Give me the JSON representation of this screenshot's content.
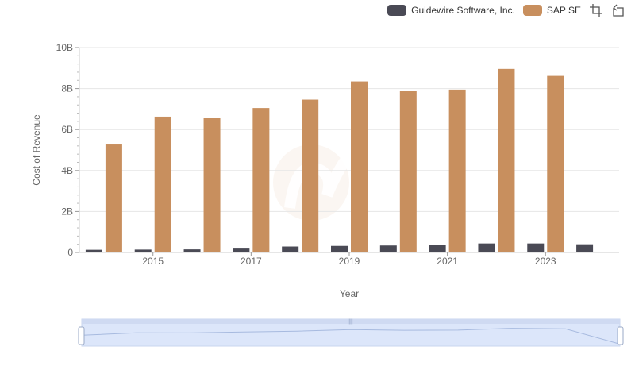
{
  "legend": {
    "items": [
      {
        "label": "Guidewire Software, Inc.",
        "color": "#4a4a55"
      },
      {
        "label": "SAP SE",
        "color": "#c88f5e"
      }
    ]
  },
  "toolbar": {
    "icons": [
      "zoom-select-icon",
      "zoom-reset-icon"
    ]
  },
  "chart_data": {
    "type": "bar",
    "xlabel": "Year",
    "ylabel": "Cost of Revenue",
    "ylim": [
      0,
      10000000000
    ],
    "y_ticks": [
      "0",
      "2B",
      "4B",
      "6B",
      "8B",
      "10B"
    ],
    "x_tick_labels": [
      "2015",
      "2017",
      "2019",
      "2021",
      "2023"
    ],
    "categories": [
      "2014",
      "2015",
      "2016",
      "2017",
      "2018",
      "2019",
      "2020",
      "2021",
      "2022",
      "2023",
      "2024"
    ],
    "series": [
      {
        "name": "Guidewire Software, Inc.",
        "color": "#4a4a55",
        "values": [
          130000000,
          140000000,
          150000000,
          190000000,
          290000000,
          320000000,
          340000000,
          380000000,
          440000000,
          440000000,
          400000000
        ]
      },
      {
        "name": "SAP SE",
        "color": "#c88f5e",
        "values": [
          5270000000,
          6630000000,
          6580000000,
          7050000000,
          7460000000,
          8350000000,
          7900000000,
          7950000000,
          8960000000,
          8620000000,
          null
        ]
      }
    ],
    "grid": true,
    "legend_position": "top-right",
    "has_range_slider": true
  }
}
